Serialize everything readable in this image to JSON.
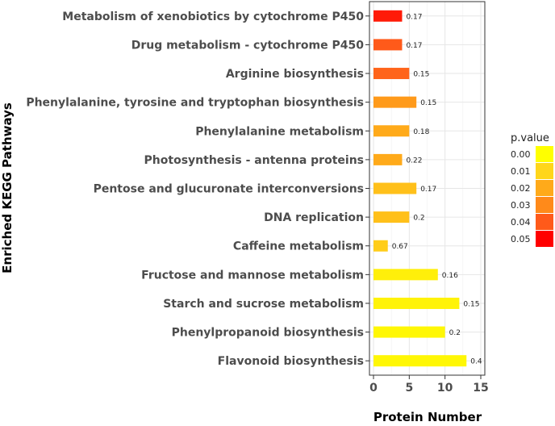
{
  "chart_data": {
    "type": "bar",
    "orientation": "horizontal",
    "categories": [
      "Metabolism of xenobiotics by cytochrome P450",
      "Drug metabolism - cytochrome P450",
      "Arginine biosynthesis",
      "Phenylalanine, tyrosine and tryptophan biosynthesis",
      "Phenylalanine metabolism",
      "Photosynthesis - antenna proteins",
      "Pentose and glucuronate interconversions",
      "DNA replication",
      "Caffeine metabolism",
      "Fructose and mannose metabolism",
      "Starch and sucrose metabolism",
      "Phenylpropanoid biosynthesis",
      "Flavonoid biosynthesis"
    ],
    "values": [
      4,
      4,
      5,
      6,
      5,
      4,
      6,
      5,
      2,
      9,
      12,
      10,
      13
    ],
    "bar_labels": [
      "0.17",
      "0.17",
      "0.15",
      "0.15",
      "0.18",
      "0.22",
      "0.17",
      "0.2",
      "0.67",
      "0.16",
      "0.15",
      "0.2",
      "0.4"
    ],
    "p_values": [
      0.047,
      0.04,
      0.038,
      0.025,
      0.02,
      0.02,
      0.015,
      0.015,
      0.012,
      0.004,
      0.003,
      0.002,
      0.002
    ],
    "xlabel": "Protein Number",
    "ylabel": "Enriched KEGG Pathways",
    "xlim": [
      0,
      15
    ],
    "xticks": [
      "0",
      "5",
      "10",
      "15"
    ],
    "grid": true,
    "legend": {
      "title": "p.value",
      "position": "right",
      "entries": [
        "0.00",
        "0.01",
        "0.02",
        "0.03",
        "0.04",
        "0.05"
      ],
      "colors": [
        "#FFFF00",
        "#FFD61A",
        "#FFAA1A",
        "#FF8A1A",
        "#FF5A1A",
        "#FF0000"
      ]
    }
  }
}
